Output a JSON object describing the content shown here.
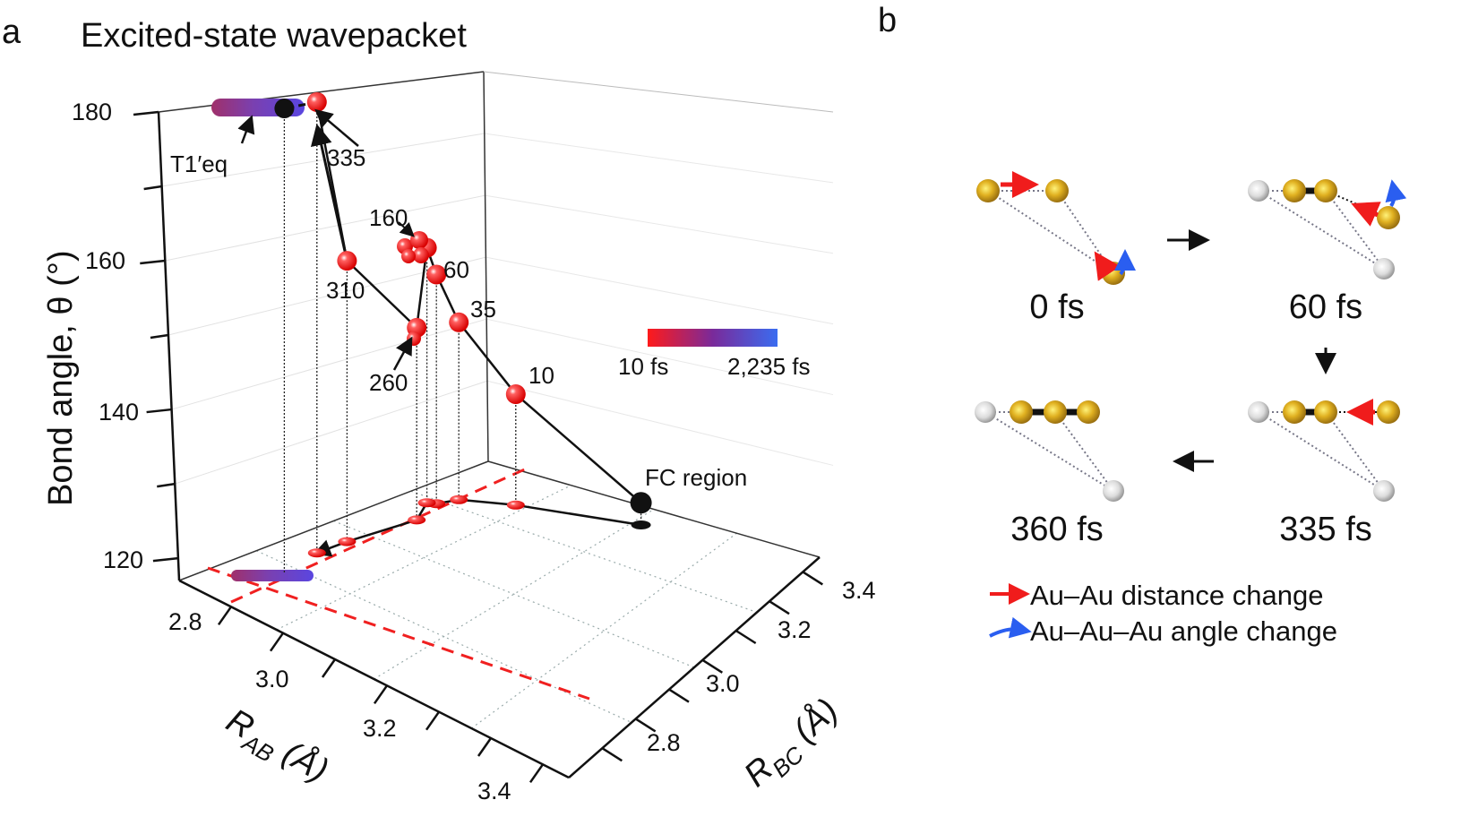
{
  "panel_a": {
    "label": "a",
    "title": "Excited-state wavepacket",
    "annotations": {
      "t335": "335",
      "t310": "310",
      "t160": "160",
      "t60": "60",
      "t35": "35",
      "t10": "10",
      "t260": "260",
      "fc": "FC region",
      "teq_main": "T",
      "teq_sub": "1",
      "teq_sup": "′eq"
    },
    "colorbar": {
      "min_label": "10 fs",
      "max_label": "2,235 fs",
      "colors": [
        "#ff1a1a",
        "#7a2a9a",
        "#3a6cf0"
      ]
    }
  },
  "chart_data": {
    "type": "scatter3d",
    "title": "Excited-state wavepacket",
    "zlabel": "Bond angle, θ (°)",
    "xlabel_main": "R",
    "xlabel_sub": "AB",
    "xlabel_unit": " (Å)",
    "ylabel_main": "R",
    "ylabel_sub": "BC",
    "ylabel_unit": " (Å)",
    "xlim": [
      2.7,
      3.45
    ],
    "ylim": [
      2.7,
      3.45
    ],
    "zlim": [
      117,
      180
    ],
    "x_ticks": [
      "2.8",
      "3.0",
      "3.2",
      "3.4"
    ],
    "y_ticks": [
      "2.8",
      "3.0",
      "3.2",
      "3.4"
    ],
    "z_ticks": [
      "120",
      "140",
      "160",
      "180"
    ],
    "grid": true,
    "color_scale": "time (fs), red to blue",
    "trajectory": [
      {
        "label": "FC region",
        "R_AB": 2.96,
        "R_BC": 3.46,
        "theta": 120
      },
      {
        "label": "10",
        "R_AB": 2.81,
        "R_BC": 3.35,
        "theta": 132
      },
      {
        "label": "35",
        "R_AB": 2.75,
        "R_BC": 3.29,
        "theta": 141
      },
      {
        "label": "60",
        "R_AB": 2.74,
        "R_BC": 3.25,
        "theta": 148
      },
      {
        "label": "160",
        "R_AB": 2.73,
        "R_BC": 3.24,
        "theta": 151.5
      },
      {
        "label": "260",
        "R_AB": 2.76,
        "R_BC": 3.18,
        "theta": 143
      },
      {
        "label": "310",
        "R_AB": 2.75,
        "R_BC": 3.03,
        "theta": 155
      },
      {
        "label": "335",
        "R_AB": 2.75,
        "R_BC": 2.96,
        "theta": 178
      },
      {
        "label": "T1′eq",
        "R_AB": 2.77,
        "R_BC": 2.86,
        "theta": 180
      }
    ]
  },
  "panel_b": {
    "label": "b",
    "frames": [
      {
        "label": "0 fs"
      },
      {
        "label": "60 fs"
      },
      {
        "label": "335 fs"
      },
      {
        "label": "360 fs"
      }
    ],
    "legend": [
      {
        "label": "Au–Au distance change",
        "color": "#f01c1c"
      },
      {
        "label": "Au–Au–Au angle change",
        "color": "#2a5ef0"
      }
    ],
    "atom_colors": {
      "gold": "#d9a520",
      "grey": "#d6d6d6"
    }
  }
}
